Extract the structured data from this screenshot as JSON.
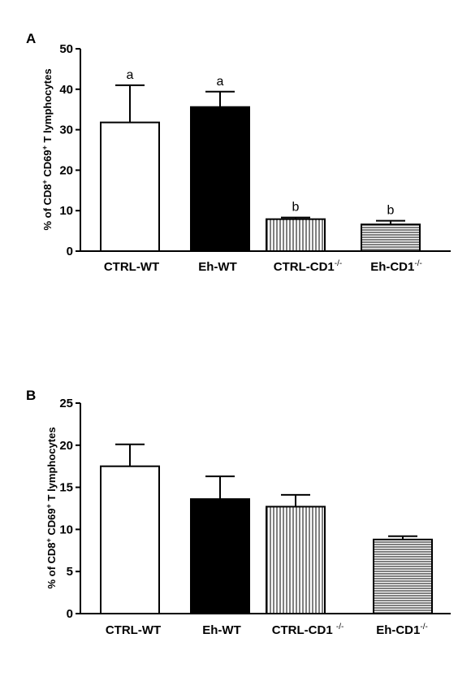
{
  "chart_data": [
    {
      "type": "bar",
      "panel": "A",
      "categories": [
        "CTRL-WT",
        "Eh-WT",
        "CTRL-CD1",
        "Eh-CD1"
      ],
      "category_superscripts": [
        "",
        "",
        "-/-",
        "-/-"
      ],
      "values": [
        31.8,
        35.6,
        7.9,
        6.6
      ],
      "errors": [
        9.2,
        3.8,
        0.4,
        0.9
      ],
      "annotations": [
        "a",
        "a",
        "b",
        "b"
      ],
      "fills": [
        "white",
        "black",
        "vertical-lines",
        "horizontal-lines"
      ],
      "ylabel_parts": [
        "% of  CD8",
        "+",
        " CD69",
        "+",
        " T lymphocytes"
      ],
      "ylim": [
        0,
        50
      ],
      "yticks": [
        "0",
        "10",
        "20",
        "30",
        "40",
        "50"
      ]
    },
    {
      "type": "bar",
      "panel": "B",
      "categories": [
        "CTRL-WT",
        "Eh-WT",
        "CTRL-CD1 ",
        "Eh-CD1"
      ],
      "category_superscripts": [
        "",
        "",
        "-/-",
        "-/-"
      ],
      "values": [
        17.5,
        13.6,
        12.7,
        8.8
      ],
      "errors": [
        2.6,
        2.7,
        1.4,
        0.4
      ],
      "annotations": [
        "",
        "",
        "",
        ""
      ],
      "fills": [
        "white",
        "black",
        "vertical-lines",
        "horizontal-lines"
      ],
      "ylabel_parts": [
        "% of CD8",
        "+",
        " CD69",
        "+",
        " T lymphocytes"
      ],
      "ylim": [
        0,
        25
      ],
      "yticks": [
        "0",
        "5",
        "10",
        "15",
        "20",
        "25"
      ]
    }
  ]
}
